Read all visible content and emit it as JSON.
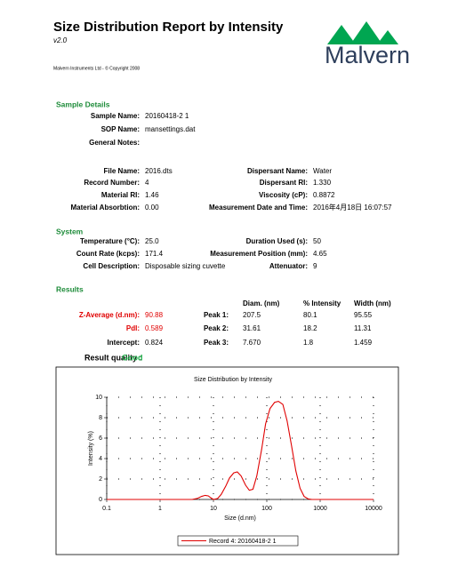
{
  "header": {
    "title": "Size Distribution Report by Intensity",
    "version": "v2.0",
    "copyright": "Malvern Instruments Ltd - © Copyright 2008",
    "logo": "Malvern"
  },
  "sample_details": {
    "heading": "Sample Details",
    "rows": [
      [
        {
          "label": "Sample Name:",
          "value": "20160418-2 1"
        }
      ],
      [
        {
          "label": "SOP Name:",
          "value": "mansettings.dat"
        }
      ],
      [
        {
          "label": "General Notes:"
        }
      ],
      [
        {
          "label": "File Name:",
          "value": "2016.dts"
        },
        {
          "label": "Dispersant Name:",
          "value": "Water"
        }
      ],
      [
        {
          "label": "Record Number:",
          "value": "4"
        },
        {
          "label": "Dispersant RI:",
          "value": "1.330"
        }
      ],
      [
        {
          "label": "Material RI:",
          "value": "1.46"
        },
        {
          "label": "Viscosity (cP):",
          "value": "0.8872"
        }
      ],
      [
        {
          "label": "Material Absorbtion:",
          "value": "0.00"
        },
        {
          "label": "Measurement Date and Time:",
          "value": "2016年4月18日 16:07:57"
        }
      ]
    ]
  },
  "system": {
    "heading": "System",
    "rows": [
      [
        {
          "label": "Temperature (°C):",
          "value": "25.0"
        },
        {
          "label": "Duration Used (s):",
          "value": "50"
        }
      ],
      [
        {
          "label": "Count Rate (kcps):",
          "value": "171.4"
        },
        {
          "label": "Measurement Position (mm):",
          "value": "4.65"
        }
      ],
      [
        {
          "label": "Cell Description:",
          "value": "Disposable sizing cuvette"
        },
        {
          "label": "Attenuator:",
          "value": "9"
        }
      ]
    ]
  },
  "results": {
    "heading": "Results",
    "summary": [
      {
        "label": "Z-Average (d.nm):",
        "value": "90.88"
      },
      {
        "label": "PdI:",
        "value": "0.589"
      },
      {
        "label": "Intercept:",
        "value": "0.824"
      }
    ],
    "peak_headers": [
      "Diam. (nm)",
      "% Intensity",
      "Width (nm)"
    ],
    "peaks": [
      {
        "label": "Peak 1:",
        "values": [
          "207.5",
          "80.1",
          "95.55"
        ]
      },
      {
        "label": "Peak 2:",
        "values": [
          "31.61",
          "18.2",
          "11.31"
        ]
      },
      {
        "label": "Peak 3:",
        "values": [
          "7.670",
          "1.8",
          "1.459"
        ]
      }
    ],
    "quality": {
      "label": "Result quality :",
      "value": "Good"
    }
  },
  "chart_data": {
    "type": "line",
    "title": "Size Distribution by Intensity",
    "xlabel": "Size (d.nm)",
    "ylabel": "Intensity (%)",
    "xscale": "log",
    "xlim": [
      0.1,
      10000
    ],
    "xticks": [
      0.1,
      1,
      10,
      100,
      1000,
      10000
    ],
    "ylim": [
      0,
      10
    ],
    "yticks": [
      0,
      2,
      4,
      6,
      8,
      10
    ],
    "grid": true,
    "x": [
      0.1,
      4,
      5,
      6,
      7,
      8,
      9,
      10,
      12,
      14,
      17,
      20,
      24,
      28,
      33,
      40,
      47,
      55,
      65,
      80,
      95,
      115,
      140,
      165,
      200,
      240,
      290,
      350,
      420,
      500,
      600,
      700,
      10000
    ],
    "series": [
      {
        "name": "Record 4: 20160418-2 1",
        "color": "#e00000",
        "values": [
          0,
          0,
          0.1,
          0.3,
          0.4,
          0.35,
          0.15,
          0,
          0.1,
          0.5,
          1.3,
          2.1,
          2.6,
          2.7,
          2.3,
          1.4,
          0.9,
          1.0,
          2.3,
          4.9,
          7.4,
          8.9,
          9.5,
          9.6,
          9.3,
          7.7,
          5.3,
          2.8,
          1.1,
          0.3,
          0.05,
          0,
          0
        ]
      }
    ]
  }
}
